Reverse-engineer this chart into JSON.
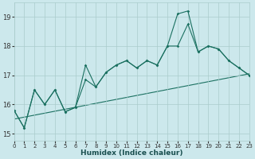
{
  "xlabel": "Humidex (Indice chaleur)",
  "bg_color": "#cce8ec",
  "grid_color": "#aacccc",
  "line_color": "#1a7060",
  "xlim": [
    0,
    23
  ],
  "ylim": [
    14.75,
    19.5
  ],
  "xticks": [
    0,
    1,
    2,
    3,
    4,
    5,
    6,
    7,
    8,
    9,
    10,
    11,
    12,
    13,
    14,
    15,
    16,
    17,
    18,
    19,
    20,
    21,
    22,
    23
  ],
  "yticks": [
    15,
    16,
    17,
    18,
    19
  ],
  "line1_x": [
    0,
    1,
    2,
    3,
    4,
    5,
    6,
    7,
    8,
    9,
    10,
    11,
    12,
    13,
    14,
    15,
    16,
    17,
    18,
    19,
    20,
    21,
    22,
    23
  ],
  "line1_y": [
    15.8,
    15.2,
    16.5,
    16.0,
    16.5,
    15.75,
    15.9,
    17.35,
    16.6,
    17.1,
    17.35,
    17.5,
    17.25,
    17.5,
    17.35,
    18.0,
    19.1,
    19.2,
    17.8,
    18.0,
    17.9,
    17.5,
    17.25,
    17.0
  ],
  "line2_x": [
    0,
    1,
    2,
    3,
    4,
    5,
    6,
    7,
    8,
    9,
    10,
    11,
    12,
    13,
    14,
    15,
    16,
    17,
    18,
    19,
    20,
    21,
    22,
    23
  ],
  "line2_y": [
    15.8,
    15.2,
    16.5,
    16.0,
    16.5,
    15.75,
    15.9,
    16.85,
    16.6,
    17.1,
    17.35,
    17.5,
    17.25,
    17.5,
    17.35,
    18.0,
    18.0,
    18.75,
    17.8,
    18.0,
    17.9,
    17.5,
    17.25,
    17.0
  ],
  "trend_x": [
    0,
    23
  ],
  "trend_y": [
    15.5,
    17.05
  ]
}
